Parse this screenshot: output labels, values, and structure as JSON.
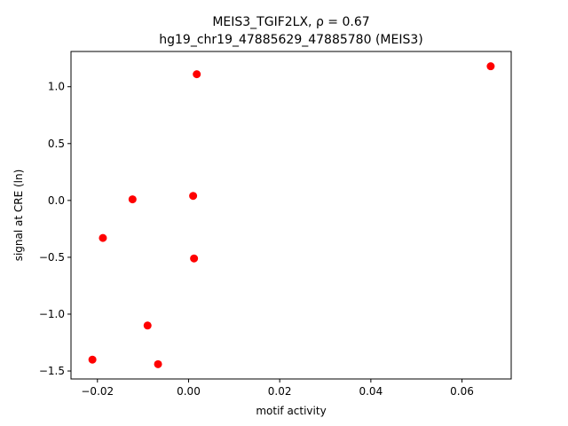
{
  "chart_data": {
    "type": "scatter",
    "title_line1": "MEIS3_TGIF2LX, ρ = 0.67",
    "title_line2": "hg19_chr19_47885629_47885780 (MEIS3)",
    "xlabel": "motif activity",
    "ylabel": "signal at CRE (ln)",
    "xlim": [
      -0.0258,
      0.0708
    ],
    "ylim": [
      -1.57,
      1.31
    ],
    "xticks": [
      -0.02,
      0.0,
      0.02,
      0.04,
      0.06
    ],
    "xtick_labels": [
      "−0.02",
      "0.00",
      "0.02",
      "0.04",
      "0.06"
    ],
    "yticks": [
      -1.5,
      -1.0,
      -0.5,
      0.0,
      0.5,
      1.0
    ],
    "ytick_labels": [
      "−1.5",
      "−1.0",
      "−0.5",
      "0.0",
      "0.5",
      "1.0"
    ],
    "marker_color": "#ff0000",
    "grid": false,
    "points": [
      {
        "x": 0.0663,
        "y": 1.18
      },
      {
        "x": 0.0018,
        "y": 1.11
      },
      {
        "x": 0.001,
        "y": 0.04
      },
      {
        "x": -0.0123,
        "y": 0.01
      },
      {
        "x": -0.0188,
        "y": -0.33
      },
      {
        "x": 0.0012,
        "y": -0.51
      },
      {
        "x": -0.009,
        "y": -1.1
      },
      {
        "x": -0.0211,
        "y": -1.4
      },
      {
        "x": -0.0067,
        "y": -1.44
      }
    ]
  }
}
